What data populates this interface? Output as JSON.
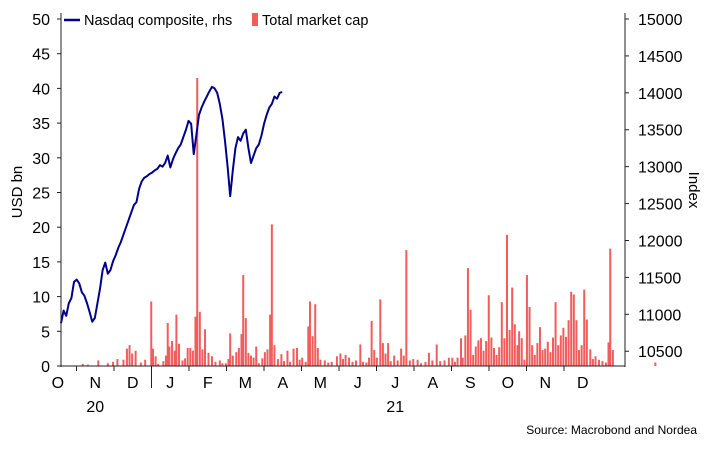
{
  "chart_data": {
    "type": "bar+line",
    "legend": [
      {
        "label": "Nasdaq composite, rhs",
        "type": "line",
        "color": "#00008b"
      },
      {
        "label": "Total market cap",
        "type": "bar",
        "color": "#f25c5c"
      }
    ],
    "ylabel_left": "USD bn",
    "ylabel_right": "Index",
    "ylim_left": [
      0,
      50
    ],
    "ylim_right": [
      10300,
      15000
    ],
    "left_ticks": [
      "0",
      "5",
      "10",
      "15",
      "20",
      "25",
      "30",
      "35",
      "40",
      "45",
      "50"
    ],
    "right_ticks": [
      "10500",
      "11000",
      "11500",
      "12000",
      "12500",
      "13000",
      "13500",
      "14000",
      "14500",
      "15000"
    ],
    "x_month_labels": [
      "O",
      "N",
      "D",
      "J",
      "F",
      "M",
      "A",
      "M",
      "J",
      "J",
      "A",
      "S",
      "O",
      "N",
      "D"
    ],
    "x_year_labels": [
      {
        "label": "20",
        "month_index": 1
      },
      {
        "label": "21",
        "month_index": 9
      }
    ],
    "x_range_weeks": [
      0,
      65
    ],
    "series": [
      {
        "name": "Nasdaq composite, rhs",
        "axis": "right",
        "points": [
          [
            0.0,
            10880
          ],
          [
            0.3,
            11050
          ],
          [
            0.6,
            10980
          ],
          [
            0.9,
            11150
          ],
          [
            1.2,
            11220
          ],
          [
            1.5,
            11440
          ],
          [
            1.8,
            11470
          ],
          [
            2.1,
            11420
          ],
          [
            2.4,
            11300
          ],
          [
            2.7,
            11250
          ],
          [
            3.0,
            11150
          ],
          [
            3.3,
            11030
          ],
          [
            3.6,
            10900
          ],
          [
            3.9,
            10950
          ],
          [
            4.2,
            11150
          ],
          [
            4.5,
            11350
          ],
          [
            4.8,
            11600
          ],
          [
            5.1,
            11700
          ],
          [
            5.4,
            11550
          ],
          [
            5.7,
            11600
          ],
          [
            6.0,
            11720
          ],
          [
            6.3,
            11800
          ],
          [
            6.6,
            11900
          ],
          [
            6.9,
            11980
          ],
          [
            7.2,
            12080
          ],
          [
            7.5,
            12180
          ],
          [
            7.8,
            12280
          ],
          [
            8.1,
            12380
          ],
          [
            8.4,
            12480
          ],
          [
            8.7,
            12520
          ],
          [
            9.0,
            12700
          ],
          [
            9.3,
            12800
          ],
          [
            9.6,
            12850
          ],
          [
            9.9,
            12870
          ],
          [
            10.2,
            12900
          ],
          [
            10.5,
            12920
          ],
          [
            10.8,
            12950
          ],
          [
            11.1,
            12970
          ],
          [
            11.4,
            13020
          ],
          [
            11.7,
            13000
          ],
          [
            12.0,
            13050
          ],
          [
            12.3,
            13150
          ],
          [
            12.6,
            12990
          ],
          [
            12.9,
            13100
          ],
          [
            13.2,
            13180
          ],
          [
            13.5,
            13250
          ],
          [
            13.8,
            13300
          ],
          [
            14.1,
            13400
          ],
          [
            14.4,
            13500
          ],
          [
            14.7,
            13620
          ],
          [
            15.0,
            13580
          ],
          [
            15.3,
            13170
          ],
          [
            15.6,
            13430
          ],
          [
            15.9,
            13700
          ],
          [
            16.2,
            13800
          ],
          [
            16.5,
            13880
          ],
          [
            16.8,
            13950
          ],
          [
            17.1,
            14020
          ],
          [
            17.4,
            14080
          ],
          [
            17.7,
            14060
          ],
          [
            18.0,
            14000
          ],
          [
            18.3,
            13850
          ],
          [
            18.6,
            13650
          ],
          [
            18.9,
            13350
          ],
          [
            19.2,
            13000
          ],
          [
            19.5,
            12600
          ],
          [
            19.8,
            12950
          ],
          [
            20.1,
            13250
          ],
          [
            20.4,
            13400
          ],
          [
            20.7,
            13350
          ],
          [
            21.0,
            13450
          ],
          [
            21.3,
            13500
          ],
          [
            21.6,
            13250
          ],
          [
            21.9,
            13050
          ],
          [
            22.2,
            13150
          ],
          [
            22.5,
            13250
          ],
          [
            22.8,
            13300
          ],
          [
            23.1,
            13420
          ],
          [
            23.4,
            13580
          ],
          [
            23.7,
            13700
          ],
          [
            24.0,
            13800
          ],
          [
            24.3,
            13850
          ],
          [
            24.6,
            13950
          ],
          [
            24.9,
            13920
          ],
          [
            25.2,
            14000
          ],
          [
            25.5,
            14010
          ]
        ]
      },
      {
        "name": "Total market cap",
        "axis": "left",
        "bars": [
          [
            2.5,
            0.3
          ],
          [
            3.1,
            0.2
          ],
          [
            4.3,
            0.8
          ],
          [
            5.4,
            0.4
          ],
          [
            6.0,
            0.6
          ],
          [
            6.5,
            1.0
          ],
          [
            7.2,
            0.9
          ],
          [
            7.6,
            2.5
          ],
          [
            7.9,
            3.0
          ],
          [
            8.2,
            1.8
          ],
          [
            8.6,
            2.2
          ],
          [
            9.2,
            0.5
          ],
          [
            9.7,
            0.9
          ],
          [
            10.4,
            9.3
          ],
          [
            10.6,
            2.5
          ],
          [
            10.9,
            1.4
          ],
          [
            11.2,
            0.3
          ],
          [
            11.8,
            0.7
          ],
          [
            12.1,
            1.5
          ],
          [
            12.3,
            6.2
          ],
          [
            12.5,
            2.8
          ],
          [
            12.8,
            3.6
          ],
          [
            13.1,
            2.2
          ],
          [
            13.3,
            7.4
          ],
          [
            13.6,
            3.2
          ],
          [
            14.0,
            0.8
          ],
          [
            14.3,
            1.1
          ],
          [
            14.6,
            2.6
          ],
          [
            14.9,
            2.6
          ],
          [
            15.2,
            2.2
          ],
          [
            15.5,
            7.1
          ],
          [
            15.7,
            41.5
          ],
          [
            16.0,
            7.8
          ],
          [
            16.3,
            2.4
          ],
          [
            16.6,
            5.3
          ],
          [
            17.0,
            1.9
          ],
          [
            17.4,
            1.4
          ],
          [
            17.8,
            0.6
          ],
          [
            18.3,
            0.8
          ],
          [
            18.6,
            0.4
          ],
          [
            19.0,
            0.4
          ],
          [
            19.3,
            1.0
          ],
          [
            19.5,
            4.7
          ],
          [
            19.8,
            1.5
          ],
          [
            20.2,
            2.0
          ],
          [
            20.5,
            2.6
          ],
          [
            20.8,
            4.6
          ],
          [
            21.0,
            13.1
          ],
          [
            21.3,
            6.9
          ],
          [
            21.6,
            1.9
          ],
          [
            21.9,
            1.5
          ],
          [
            22.2,
            1.2
          ],
          [
            22.5,
            2.8
          ],
          [
            22.8,
            0.4
          ],
          [
            23.2,
            1.1
          ],
          [
            23.5,
            2.0
          ],
          [
            23.8,
            2.4
          ],
          [
            24.1,
            7.4
          ],
          [
            24.3,
            20.4
          ],
          [
            24.6,
            3.0
          ],
          [
            25.0,
            1.0
          ],
          [
            25.4,
            1.7
          ],
          [
            25.7,
            0.7
          ],
          [
            26.1,
            2.2
          ],
          [
            26.4,
            0.6
          ],
          [
            26.8,
            2.5
          ],
          [
            27.2,
            2.6
          ],
          [
            27.5,
            0.9
          ],
          [
            27.8,
            1.2
          ],
          [
            28.2,
            0.6
          ],
          [
            28.5,
            5.7
          ],
          [
            28.7,
            9.3
          ],
          [
            29.0,
            4.3
          ],
          [
            29.3,
            8.9
          ],
          [
            29.6,
            2.6
          ],
          [
            29.9,
            0.9
          ],
          [
            30.4,
            0.8
          ],
          [
            30.8,
            0.5
          ],
          [
            31.2,
            0.6
          ],
          [
            31.8,
            1.4
          ],
          [
            32.2,
            1.8
          ],
          [
            32.5,
            1.0
          ],
          [
            32.8,
            1.6
          ],
          [
            33.2,
            1.2
          ],
          [
            33.6,
            0.6
          ],
          [
            34.0,
            0.8
          ],
          [
            34.5,
            3.1
          ],
          [
            34.8,
            0.6
          ],
          [
            35.2,
            0.5
          ],
          [
            35.5,
            1.2
          ],
          [
            35.8,
            6.5
          ],
          [
            36.1,
            2.3
          ],
          [
            36.4,
            1.2
          ],
          [
            36.8,
            9.6
          ],
          [
            37.1,
            3.3
          ],
          [
            37.4,
            1.8
          ],
          [
            37.7,
            3.3
          ],
          [
            38.0,
            0.7
          ],
          [
            38.4,
            1.5
          ],
          [
            38.8,
            0.8
          ],
          [
            39.2,
            2.5
          ],
          [
            39.5,
            1.5
          ],
          [
            39.8,
            16.7
          ],
          [
            40.2,
            0.8
          ],
          [
            40.6,
            1.0
          ],
          [
            41.1,
            0.9
          ],
          [
            41.5,
            0.4
          ],
          [
            42.0,
            0.6
          ],
          [
            42.4,
            1.9
          ],
          [
            42.8,
            0.8
          ],
          [
            43.3,
            3.1
          ],
          [
            43.7,
            0.7
          ],
          [
            44.2,
            0.8
          ],
          [
            44.7,
            1.2
          ],
          [
            45.1,
            1.2
          ],
          [
            45.4,
            0.6
          ],
          [
            45.7,
            1.2
          ],
          [
            46.1,
            4.0
          ],
          [
            46.3,
            1.2
          ],
          [
            46.6,
            4.4
          ],
          [
            46.9,
            14.1
          ],
          [
            47.2,
            8.1
          ],
          [
            47.5,
            1.6
          ],
          [
            47.8,
            2.8
          ],
          [
            48.1,
            3.7
          ],
          [
            48.4,
            4.0
          ],
          [
            48.7,
            2.2
          ],
          [
            49.0,
            3.6
          ],
          [
            49.3,
            10.2
          ],
          [
            49.6,
            4.1
          ],
          [
            49.9,
            2.6
          ],
          [
            50.2,
            1.6
          ],
          [
            50.5,
            2.7
          ],
          [
            50.8,
            9.2
          ],
          [
            51.1,
            4.0
          ],
          [
            51.4,
            18.9
          ],
          [
            51.7,
            5.2
          ],
          [
            52.0,
            11.3
          ],
          [
            52.3,
            6.0
          ],
          [
            52.6,
            3.0
          ],
          [
            52.8,
            5.0
          ],
          [
            53.1,
            4.0
          ],
          [
            53.4,
            0.9
          ],
          [
            53.7,
            13.1
          ],
          [
            54.0,
            8.5
          ],
          [
            54.3,
            3.0
          ],
          [
            54.6,
            1.6
          ],
          [
            54.9,
            3.3
          ],
          [
            55.2,
            5.6
          ],
          [
            55.5,
            2.3
          ],
          [
            55.8,
            2.5
          ],
          [
            56.1,
            3.5
          ],
          [
            56.4,
            2.0
          ],
          [
            56.7,
            4.1
          ],
          [
            57.0,
            9.2
          ],
          [
            57.3,
            3.0
          ],
          [
            57.6,
            4.4
          ],
          [
            57.9,
            5.5
          ],
          [
            58.2,
            4.2
          ],
          [
            58.5,
            6.6
          ],
          [
            58.8,
            10.7
          ],
          [
            59.1,
            10.3
          ],
          [
            59.4,
            6.6
          ],
          [
            59.7,
            2.3
          ],
          [
            60.0,
            3.0
          ],
          [
            60.3,
            11.0
          ],
          [
            60.6,
            6.7
          ],
          [
            61.0,
            2.4
          ],
          [
            61.3,
            1.0
          ],
          [
            61.6,
            1.4
          ],
          [
            62.0,
            0.9
          ],
          [
            62.4,
            0.7
          ],
          [
            62.8,
            0.5
          ],
          [
            63.1,
            3.4
          ],
          [
            63.3,
            16.9
          ],
          [
            63.6,
            2.3
          ],
          [
            68.5,
            0.5
          ]
        ]
      }
    ],
    "source": "Source: Macrobond and Nordea"
  }
}
